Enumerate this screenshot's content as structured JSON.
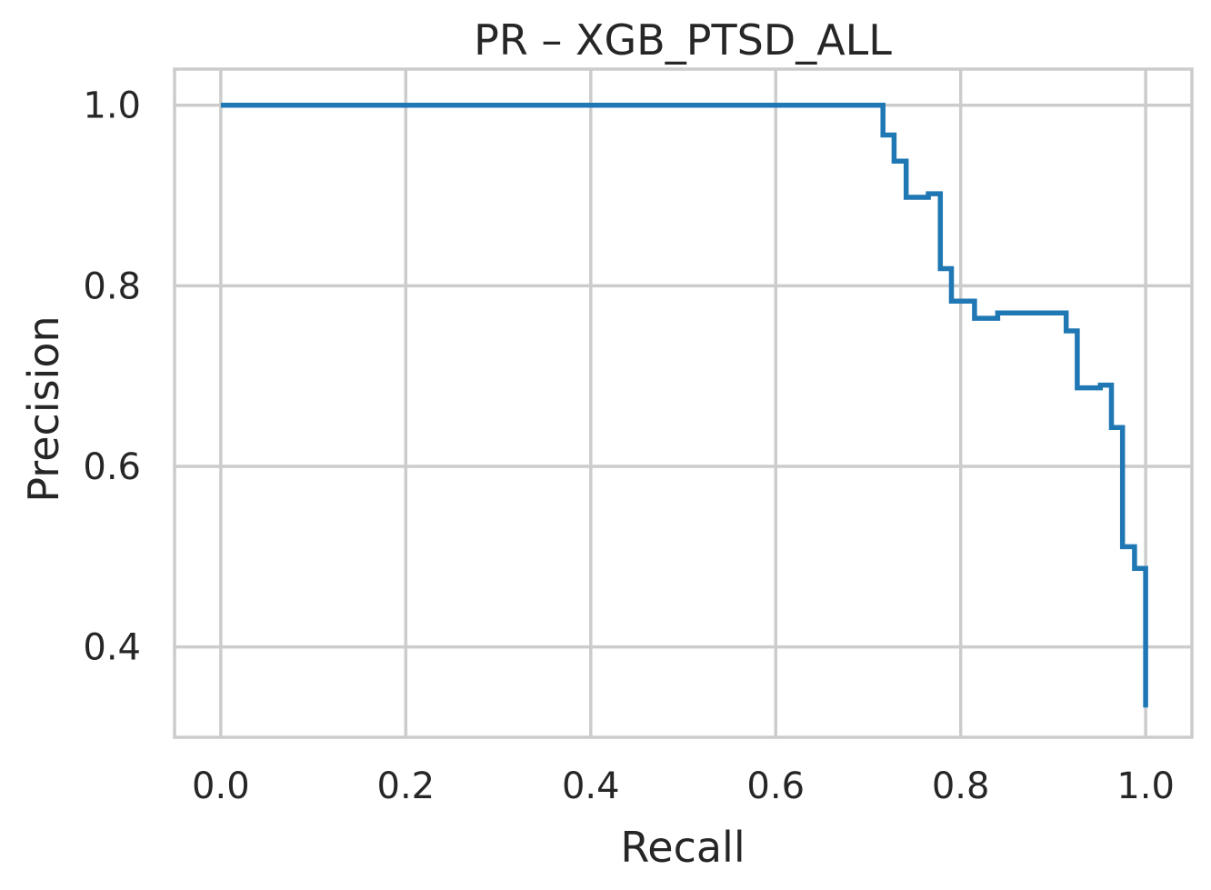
{
  "chart_data": {
    "type": "line",
    "title": "PR – XGB_PTSD_ALL",
    "xlabel": "Recall",
    "ylabel": "Precision",
    "xlim": [
      -0.05,
      1.05
    ],
    "ylim": [
      0.3,
      1.04
    ],
    "xticks": [
      0.0,
      0.2,
      0.4,
      0.6,
      0.8,
      1.0
    ],
    "xtick_labels": [
      "0.0",
      "0.2",
      "0.4",
      "0.6",
      "0.8",
      "1.0"
    ],
    "yticks": [
      0.4,
      0.6,
      0.8,
      1.0
    ],
    "ytick_labels": [
      "0.4",
      "0.6",
      "0.8",
      "1.0"
    ],
    "grid": true,
    "legend": "none",
    "colors": {
      "line": "#1f77b4",
      "grid": "#cccccc",
      "text": "#262626"
    },
    "series": [
      {
        "step": "post",
        "x": [
          0.0,
          0.716,
          0.716,
          0.728,
          0.728,
          0.741,
          0.741,
          0.765,
          0.765,
          0.778,
          0.778,
          0.79,
          0.79,
          0.815,
          0.815,
          0.84,
          0.84,
          0.914,
          0.914,
          0.926,
          0.926,
          0.951,
          0.951,
          0.963,
          0.963,
          0.975,
          0.975,
          0.988,
          0.988,
          1.0,
          1.0
        ],
        "y": [
          1.0,
          1.0,
          0.967,
          0.967,
          0.938,
          0.938,
          0.898,
          0.898,
          0.902,
          0.902,
          0.819,
          0.819,
          0.783,
          0.783,
          0.764,
          0.764,
          0.77,
          0.77,
          0.75,
          0.75,
          0.687,
          0.687,
          0.69,
          0.69,
          0.643,
          0.643,
          0.511,
          0.511,
          0.487,
          0.487,
          0.333
        ]
      }
    ]
  }
}
